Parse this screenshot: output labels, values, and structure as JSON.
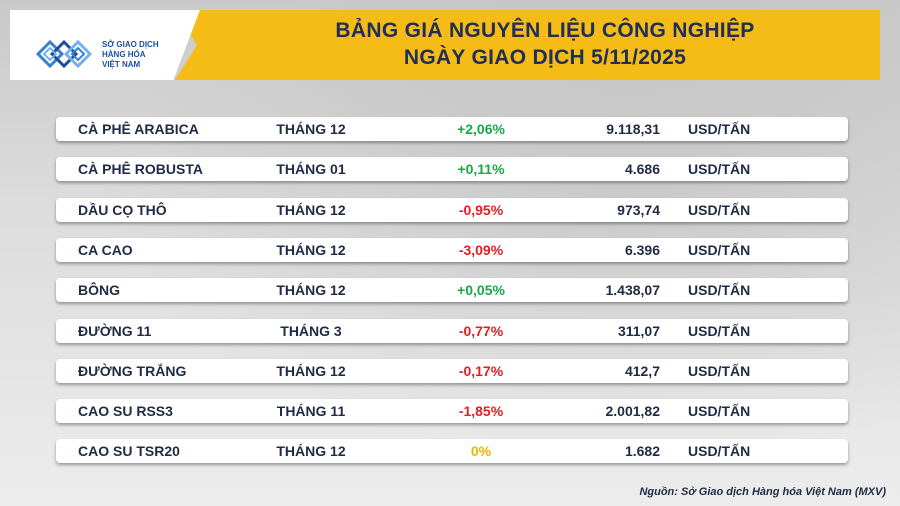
{
  "header": {
    "logo_text_lines": [
      "SỞ GIAO DỊCH",
      "HÀNG HÓA",
      "VIỆT NAM"
    ],
    "title_line1": "BẢNG GIÁ NGUYÊN LIỆU CÔNG NGHIỆP",
    "title_line2": "NGÀY GIAO DỊCH 5/11/2025",
    "brand_color": "#1b4f9c",
    "accent_color": "#f5bb17"
  },
  "colors": {
    "positive": "#1aa64a",
    "negative": "#e02020",
    "neutral": "#f0b400"
  },
  "rows": [
    {
      "name": "CÀ PHÊ ARABICA",
      "month": "THÁNG 12",
      "change": "+2,06%",
      "direction": "up",
      "price": "9.118,31",
      "unit": "USD/TẤN"
    },
    {
      "name": "CÀ PHÊ ROBUSTA",
      "month": "THÁNG 01",
      "change": "+0,11%",
      "direction": "up",
      "price": "4.686",
      "unit": "USD/TẤN"
    },
    {
      "name": "DẦU CỌ THÔ",
      "month": "THÁNG 12",
      "change": "-0,95%",
      "direction": "down",
      "price": "973,74",
      "unit": "USD/TẤN"
    },
    {
      "name": "CA CAO",
      "month": "THÁNG 12",
      "change": "-3,09%",
      "direction": "down",
      "price": "6.396",
      "unit": "USD/TẤN"
    },
    {
      "name": "BÔNG",
      "month": "THÁNG 12",
      "change": "+0,05%",
      "direction": "up",
      "price": "1.438,07",
      "unit": "USD/TẤN"
    },
    {
      "name": "ĐƯỜNG 11",
      "month": "THÁNG 3",
      "change": "-0,77%",
      "direction": "down",
      "price": "311,07",
      "unit": "USD/TẤN"
    },
    {
      "name": "ĐƯỜNG TRẮNG",
      "month": "THÁNG 12",
      "change": "-0,17%",
      "direction": "down",
      "price": "412,7",
      "unit": "USD/TẤN"
    },
    {
      "name": "CAO SU RSS3",
      "month": "THÁNG 11",
      "change": "-1,85%",
      "direction": "down",
      "price": "2.001,82",
      "unit": "USD/TẤN"
    },
    {
      "name": "CAO SU TSR20",
      "month": "THÁNG 12",
      "change": "0%",
      "direction": "flat",
      "price": "1.682",
      "unit": "USD/TẤN"
    }
  ],
  "footer": {
    "source": "Nguồn: Sở Giao dịch Hàng hóa Việt Nam (MXV)"
  }
}
